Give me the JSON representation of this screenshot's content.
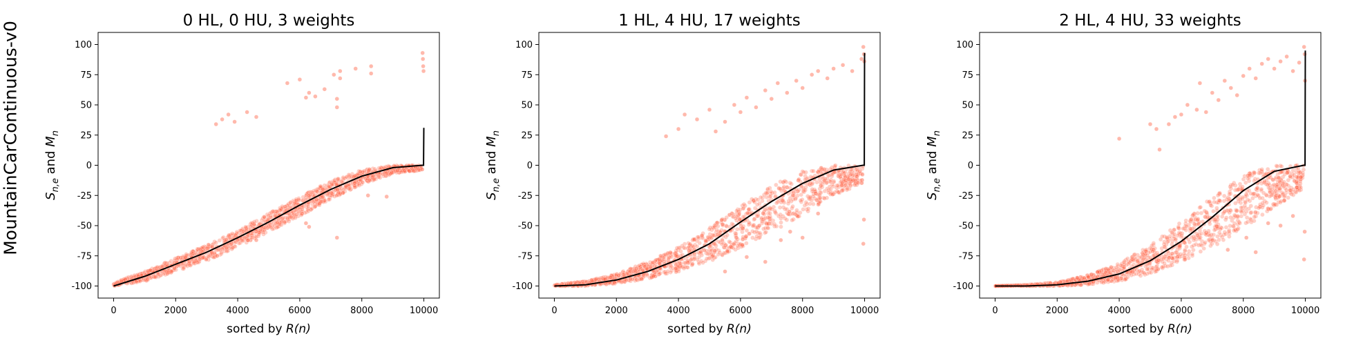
{
  "row_label": "MountainCarContinuous-v0",
  "colors": {
    "scatter": "#ff6347",
    "mean_line": "#000000",
    "axes": "#000000"
  },
  "chart_data": [
    {
      "type": "scatter",
      "title": "0 HL, 0 HU, 3 weights",
      "xlabel": "sorted by R(n)",
      "ylabel": "S_{n,e} and M_n",
      "xlim": [
        -500,
        10500
      ],
      "ylim": [
        -110,
        110
      ],
      "xticks": [
        0,
        2000,
        4000,
        6000,
        8000,
        10000
      ],
      "yticks": [
        -100,
        -75,
        -50,
        -25,
        0,
        25,
        50,
        75,
        100
      ],
      "grid": false,
      "series": [
        {
          "name": "",
          "kind": "mean_line",
          "x": [
            0,
            1000,
            2000,
            3000,
            4000,
            5000,
            6000,
            7000,
            8000,
            9000,
            9950,
            9990,
            10000
          ],
          "y": [
            -100,
            -92,
            -82,
            -72,
            -60,
            -47,
            -33,
            -20,
            -9,
            -2,
            0,
            0,
            31
          ]
        },
        {
          "name": "",
          "kind": "samples_band",
          "x": [
            0,
            1000,
            2000,
            3000,
            4000,
            5000,
            6000,
            7000,
            8000,
            9000,
            9950
          ],
          "y_low": [
            -100,
            -96,
            -88,
            -79,
            -68,
            -55,
            -42,
            -28,
            -16,
            -7,
            -4
          ],
          "y_high": [
            -97,
            -88,
            -77,
            -66,
            -54,
            -40,
            -26,
            -13,
            -4,
            0,
            0
          ]
        },
        {
          "name": "",
          "kind": "samples_outliers",
          "x": [
            3300,
            3500,
            3700,
            3900,
            4300,
            4600,
            5600,
            6000,
            6200,
            6300,
            6500,
            6800,
            7100,
            7200,
            7200,
            7300,
            7300,
            7800,
            8300,
            8300,
            9960,
            9970,
            9980,
            9990,
            6200,
            6300,
            7200,
            8200,
            8800,
            4600,
            4000
          ],
          "y": [
            34,
            38,
            42,
            36,
            44,
            40,
            68,
            71,
            56,
            60,
            57,
            63,
            75,
            55,
            48,
            72,
            78,
            80,
            82,
            76,
            93,
            88,
            82,
            78,
            -48,
            -51,
            -60,
            -25,
            -26,
            -62,
            -62
          ]
        }
      ]
    },
    {
      "type": "scatter",
      "title": "1 HL, 4 HU, 17 weights",
      "xlabel": "sorted by R(n)",
      "ylabel": "S_{n,e} and M_n",
      "xlim": [
        -500,
        10500
      ],
      "ylim": [
        -110,
        110
      ],
      "xticks": [
        0,
        2000,
        4000,
        6000,
        8000,
        10000
      ],
      "yticks": [
        -100,
        -75,
        -50,
        -25,
        0,
        25,
        50,
        75,
        100
      ],
      "grid": false,
      "series": [
        {
          "name": "",
          "kind": "mean_line",
          "x": [
            0,
            1000,
            2000,
            3000,
            4000,
            5000,
            6000,
            7000,
            8000,
            9000,
            9950,
            9990,
            10000
          ],
          "y": [
            -100,
            -99,
            -95,
            -88,
            -78,
            -65,
            -47,
            -30,
            -15,
            -4,
            0,
            0,
            93
          ]
        },
        {
          "name": "",
          "kind": "samples_band",
          "x": [
            0,
            1000,
            2000,
            3000,
            4000,
            5000,
            6000,
            7000,
            8000,
            9000,
            9950
          ],
          "y_low": [
            -100,
            -100,
            -98,
            -94,
            -88,
            -80,
            -68,
            -55,
            -42,
            -25,
            -15
          ],
          "y_high": [
            -99,
            -96,
            -90,
            -80,
            -68,
            -52,
            -34,
            -17,
            -5,
            0,
            0
          ]
        },
        {
          "name": "",
          "kind": "samples_outliers",
          "x": [
            3600,
            4000,
            4200,
            4600,
            5000,
            5200,
            5500,
            5800,
            6000,
            6200,
            6500,
            6800,
            7000,
            7200,
            7500,
            7800,
            8000,
            8300,
            8500,
            8800,
            9000,
            9300,
            9600,
            9900,
            9960,
            9980,
            9990,
            5500,
            6200,
            6800,
            7300,
            7600,
            8000,
            8500,
            9960,
            9980
          ],
          "y": [
            24,
            30,
            42,
            38,
            46,
            28,
            36,
            50,
            44,
            56,
            48,
            62,
            55,
            68,
            60,
            70,
            64,
            75,
            78,
            72,
            80,
            83,
            78,
            88,
            98,
            92,
            86,
            -88,
            -76,
            -80,
            -62,
            -55,
            -60,
            -40,
            -65,
            -45
          ]
        }
      ]
    },
    {
      "type": "scatter",
      "title": "2 HL, 4 HU, 33 weights",
      "xlabel": "sorted by R(n)",
      "ylabel": "S_{n,e} and M_n",
      "xlim": [
        -500,
        10500
      ],
      "ylim": [
        -110,
        110
      ],
      "xticks": [
        0,
        2000,
        4000,
        6000,
        8000,
        10000
      ],
      "yticks": [
        -100,
        -75,
        -50,
        -25,
        0,
        25,
        50,
        75,
        100
      ],
      "grid": false,
      "series": [
        {
          "name": "",
          "kind": "mean_line",
          "x": [
            0,
            1000,
            2000,
            3000,
            4000,
            5000,
            6000,
            7000,
            8000,
            9000,
            9950,
            9990,
            10000
          ],
          "y": [
            -100,
            -100,
            -99,
            -96,
            -90,
            -79,
            -63,
            -43,
            -21,
            -5,
            0,
            0,
            95
          ]
        },
        {
          "name": "",
          "kind": "samples_band",
          "x": [
            0,
            1000,
            2000,
            3000,
            4000,
            5000,
            6000,
            7000,
            8000,
            9000,
            9950
          ],
          "y_low": [
            -100,
            -100,
            -100,
            -99,
            -96,
            -90,
            -80,
            -68,
            -52,
            -35,
            -20
          ],
          "y_high": [
            -100,
            -99,
            -97,
            -91,
            -81,
            -66,
            -47,
            -26,
            -8,
            0,
            0
          ]
        },
        {
          "name": "",
          "kind": "samples_outliers",
          "x": [
            4000,
            5000,
            5200,
            5600,
            5800,
            6000,
            6200,
            6500,
            6600,
            6800,
            7000,
            7200,
            7400,
            7600,
            7800,
            8000,
            8200,
            8400,
            8600,
            8800,
            9000,
            9200,
            9400,
            9600,
            9800,
            9960,
            9980,
            9990,
            5300,
            7000,
            7500,
            8100,
            8400,
            8800,
            9200,
            9600,
            9960,
            9980
          ],
          "y": [
            22,
            34,
            30,
            34,
            40,
            42,
            50,
            46,
            68,
            44,
            60,
            54,
            70,
            64,
            58,
            74,
            80,
            72,
            84,
            88,
            80,
            86,
            90,
            78,
            85,
            98,
            92,
            70,
            13,
            -62,
            -70,
            -60,
            -72,
            -48,
            -50,
            -42,
            -78,
            -55
          ]
        }
      ]
    }
  ]
}
